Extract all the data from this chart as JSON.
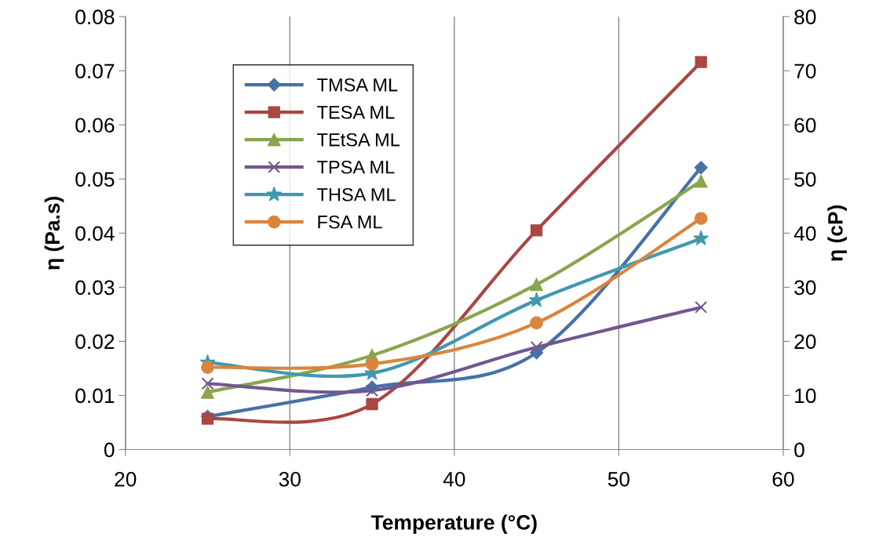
{
  "chart_data": {
    "type": "line",
    "xlabel": "Temperature (°C)",
    "ylabel": "η (Pa.s)",
    "y2label": "η (cP)",
    "x": [
      25,
      35,
      45,
      55
    ],
    "series": [
      {
        "name": "TMSA ML",
        "color": "#4572a7",
        "marker": "diamond",
        "values": [
          0.0061,
          0.0115,
          0.0179,
          0.0521
        ]
      },
      {
        "name": "TESA ML",
        "color": "#aa4643",
        "marker": "square",
        "values": [
          0.0057,
          0.0084,
          0.0405,
          0.0716
        ]
      },
      {
        "name": "TEtSA ML",
        "color": "#89a54e",
        "marker": "triangle",
        "values": [
          0.0106,
          0.0174,
          0.0305,
          0.0496
        ]
      },
      {
        "name": "TPSA ML",
        "color": "#71588f",
        "marker": "cross",
        "values": [
          0.0122,
          0.0109,
          0.0189,
          0.0263
        ]
      },
      {
        "name": "THSA ML",
        "color": "#4198af",
        "marker": "star",
        "values": [
          0.0161,
          0.0141,
          0.0276,
          0.039
        ]
      },
      {
        "name": "FSA ML",
        "color": "#db843d",
        "marker": "circle",
        "values": [
          0.0152,
          0.0158,
          0.0234,
          0.0427
        ]
      }
    ],
    "xlim": [
      20,
      60
    ],
    "xticks": [
      20,
      30,
      40,
      50,
      60
    ],
    "ylim": [
      0,
      0.08
    ],
    "yticks": [
      {
        "value": 0,
        "label": "0"
      },
      {
        "value": 0.01,
        "label": "0.01"
      },
      {
        "value": 0.02,
        "label": "0.02"
      },
      {
        "value": 0.03,
        "label": "0.03"
      },
      {
        "value": 0.04,
        "label": "0.04"
      },
      {
        "value": 0.05,
        "label": "0.05"
      },
      {
        "value": 0.06,
        "label": "0.06"
      },
      {
        "value": 0.07,
        "label": "0.07"
      },
      {
        "value": 0.08,
        "label": "0.08"
      }
    ],
    "y2lim": [
      0,
      80
    ],
    "y2ticks": [
      0,
      10,
      20,
      30,
      40,
      50,
      60,
      70,
      80
    ],
    "grid": "x",
    "legend": "top left"
  }
}
